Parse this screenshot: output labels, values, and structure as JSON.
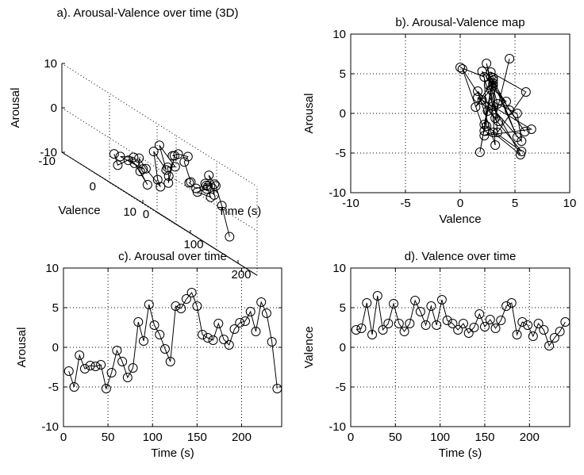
{
  "chart_data": [
    {
      "id": "a",
      "type": "scatter",
      "projection": "3d",
      "title": "a). Arousal-Valence over time (3D)",
      "xlabel": "Time (s)",
      "ylabel": "Valence",
      "zlabel": "Arousal",
      "xlim": [
        0,
        240
      ],
      "ylim": [
        -10,
        10
      ],
      "zlim": [
        -10,
        10
      ],
      "xticks": [
        "0",
        "100",
        "200"
      ],
      "yticks": [
        "-10",
        "0",
        "10"
      ],
      "zticks": [
        "-10",
        "0",
        "10"
      ],
      "grid": true,
      "x": [
        6,
        12,
        18,
        24,
        30,
        36,
        42,
        48,
        54,
        60,
        66,
        72,
        78,
        84,
        90,
        96,
        102,
        108,
        114,
        120,
        126,
        132,
        138,
        144,
        150,
        156,
        162,
        168,
        174,
        180,
        186,
        192,
        198,
        204,
        210,
        216,
        222,
        228,
        234,
        240
      ],
      "valence": [
        2.2,
        2.4,
        5.6,
        1.6,
        6.5,
        2.2,
        3.0,
        5.5,
        3.0,
        2.0,
        3.0,
        5.9,
        4.5,
        2.8,
        5.2,
        2.8,
        6.0,
        3.4,
        3.0,
        2.2,
        3.0,
        1.8,
        2.5,
        4.2,
        2.6,
        3.5,
        2.4,
        3.4,
        5.2,
        5.6,
        1.6,
        3.2,
        2.8,
        1.4,
        3.0,
        2.2,
        0.2,
        1.2,
        2.0,
        3.2
      ],
      "arousal": [
        -3.0,
        -5.0,
        -1.0,
        -2.7,
        -2.3,
        -2.4,
        -2.2,
        -5.2,
        -3.2,
        -0.4,
        -1.8,
        -3.8,
        -2.6,
        3.2,
        0.8,
        5.4,
        2.8,
        1.6,
        -0.2,
        -1.8,
        5.2,
        4.9,
        6.1,
        6.9,
        5.2,
        1.6,
        1.2,
        0.9,
        3.0,
        1.0,
        0.3,
        2.3,
        3.1,
        3.3,
        4.5,
        2.0,
        5.7,
        4.3,
        0.7,
        -5.2
      ]
    },
    {
      "id": "b",
      "type": "scatter",
      "title": "b). Arousal-Valence map",
      "xlabel": "Valence",
      "ylabel": "Arousal",
      "xlim": [
        -10,
        10
      ],
      "ylim": [
        -10,
        10
      ],
      "xticks": [
        "-10",
        "-5",
        "0",
        "5",
        "10"
      ],
      "yticks": [
        "-10",
        "-5",
        "0",
        "5",
        "10"
      ],
      "grid": true,
      "x": [
        0.0,
        2.2,
        2.4,
        5.6,
        1.6,
        6.5,
        2.2,
        3.0,
        5.5,
        3.0,
        2.0,
        3.0,
        5.9,
        4.5,
        2.8,
        5.2,
        2.8,
        6.0,
        3.4,
        3.0,
        2.2,
        3.0,
        1.8,
        2.5,
        4.2,
        2.6,
        3.5,
        2.4,
        3.4,
        5.2,
        5.6,
        1.6,
        3.2,
        2.8,
        1.4,
        3.0,
        2.2,
        0.2,
        2.0,
        3.2,
        4.5
      ],
      "y": [
        5.8,
        4.6,
        -1.6,
        -4.8,
        2.0,
        -2.0,
        -2.8,
        -2.4,
        -5.2,
        0.9,
        5.3,
        3.5,
        -2.3,
        0.4,
        4.6,
        -3.0,
        5.2,
        2.7,
        -2.4,
        3.8,
        -1.4,
        4.5,
        -4.9,
        0.3,
        1.5,
        3.6,
        -1.0,
        6.3,
        1.2,
        0.0,
        -3.5,
        2.8,
        -4.0,
        3.0,
        0.8,
        4.2,
        -2.2,
        5.6,
        1.7,
        -0.6,
        6.9
      ]
    },
    {
      "id": "c",
      "type": "line",
      "markers": "circle",
      "title": "c). Arousal over time",
      "xlabel": "Time (s)",
      "ylabel": "Arousal",
      "xlim": [
        0,
        245
      ],
      "ylim": [
        -10,
        10
      ],
      "xticks": [
        "0",
        "50",
        "100",
        "150",
        "200"
      ],
      "yticks": [
        "-10",
        "-5",
        "0",
        "5",
        "10"
      ],
      "grid": true,
      "x": [
        6,
        12,
        18,
        24,
        30,
        36,
        42,
        48,
        54,
        60,
        66,
        72,
        78,
        84,
        90,
        96,
        102,
        108,
        114,
        120,
        126,
        132,
        138,
        144,
        150,
        156,
        162,
        168,
        174,
        180,
        186,
        192,
        198,
        204,
        210,
        216,
        222,
        228,
        234,
        240
      ],
      "y": [
        -3.0,
        -5.0,
        -1.0,
        -2.7,
        -2.3,
        -2.4,
        -2.2,
        -5.2,
        -3.2,
        -0.4,
        -1.8,
        -3.8,
        -2.6,
        3.2,
        0.8,
        5.4,
        2.8,
        1.6,
        -0.2,
        -1.8,
        5.2,
        4.9,
        6.1,
        6.9,
        5.2,
        1.6,
        1.2,
        0.9,
        3.0,
        1.0,
        0.3,
        2.3,
        3.1,
        3.3,
        4.5,
        2.0,
        5.7,
        4.3,
        0.7,
        -5.2
      ]
    },
    {
      "id": "d",
      "type": "line",
      "markers": "circle",
      "title": "d). Valence over time",
      "xlabel": "Time (s)",
      "ylabel": "Valence",
      "xlim": [
        0,
        245
      ],
      "ylim": [
        -10,
        10
      ],
      "xticks": [
        "0",
        "50",
        "100",
        "150",
        "200"
      ],
      "yticks": [
        "-10",
        "-5",
        "0",
        "5",
        "10"
      ],
      "grid": true,
      "x": [
        6,
        12,
        18,
        24,
        30,
        36,
        42,
        48,
        54,
        60,
        66,
        72,
        78,
        84,
        90,
        96,
        102,
        108,
        114,
        120,
        126,
        132,
        138,
        144,
        150,
        156,
        162,
        168,
        174,
        180,
        186,
        192,
        198,
        204,
        210,
        216,
        222,
        228,
        234,
        240
      ],
      "y": [
        2.2,
        2.4,
        5.6,
        1.6,
        6.5,
        2.2,
        3.0,
        5.5,
        3.0,
        2.0,
        3.0,
        5.9,
        4.5,
        2.8,
        5.2,
        2.8,
        6.0,
        3.4,
        3.0,
        2.2,
        3.0,
        1.8,
        2.5,
        4.2,
        2.6,
        3.5,
        2.4,
        3.4,
        5.2,
        5.6,
        1.6,
        3.2,
        2.8,
        1.4,
        3.0,
        2.2,
        0.2,
        1.2,
        2.0,
        3.2
      ]
    }
  ]
}
